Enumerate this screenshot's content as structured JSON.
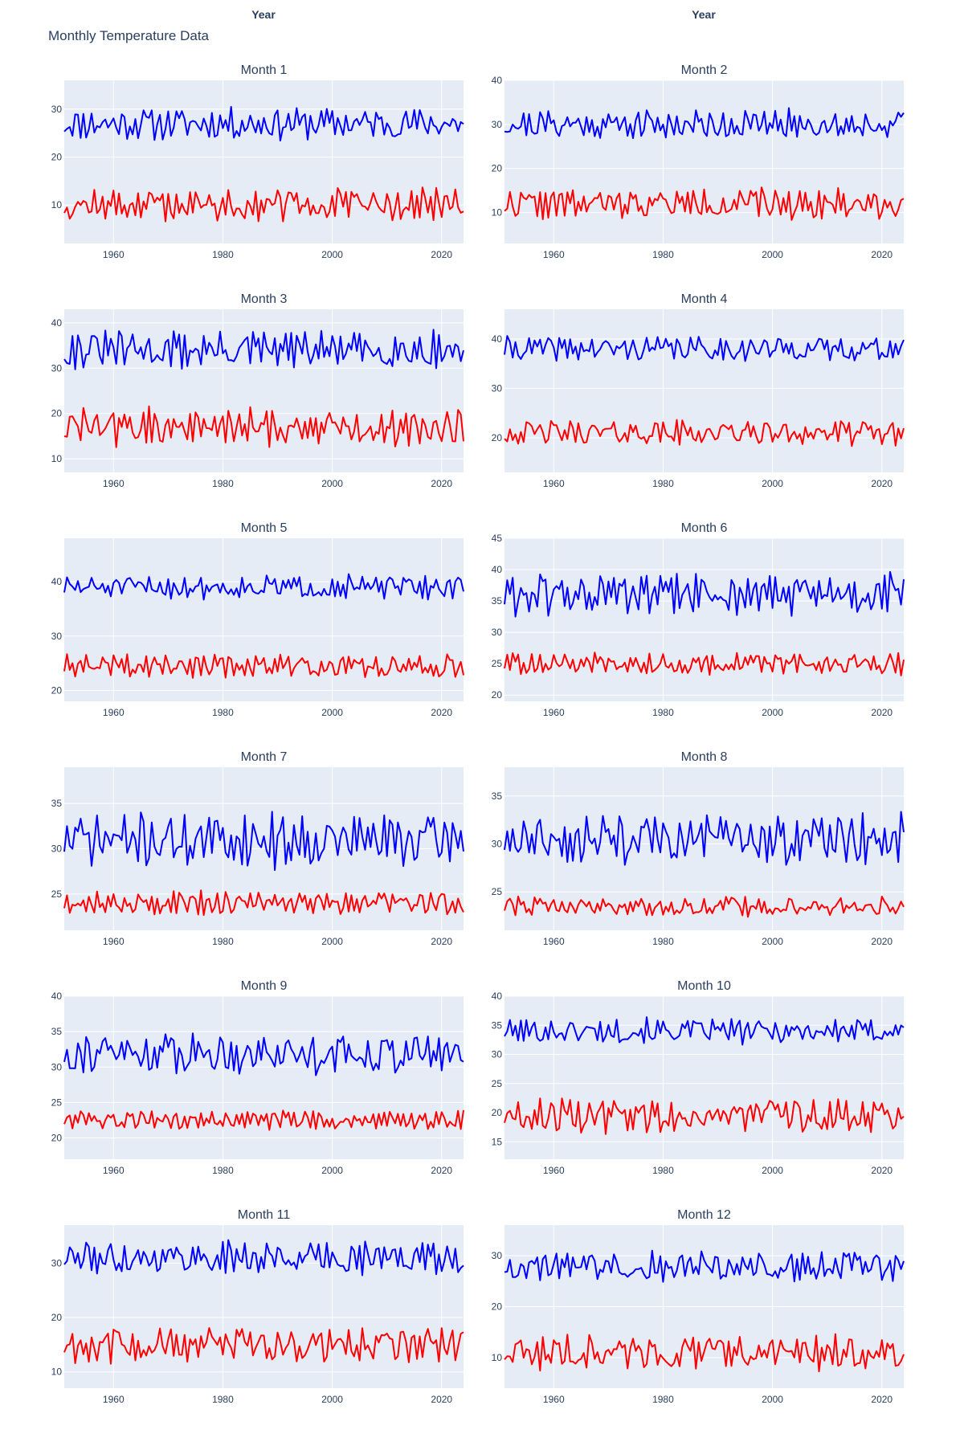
{
  "title": "Monthly Temperature Data",
  "xaxis_title": "Year",
  "colors": {
    "background": "#ffffff",
    "plot_bg": "#e5ecf6",
    "grid": "#ffffff",
    "text": "#2a3f5f",
    "series_high": "#0000ff",
    "series_low": "#ff0000"
  },
  "chart_data": [
    {
      "type": "line",
      "title": "Month 1",
      "x_range": [
        1951,
        2024
      ],
      "ylim": [
        2,
        36
      ],
      "yticks": [
        10,
        20,
        30
      ],
      "xticks": [
        1960,
        1980,
        2000,
        2020
      ],
      "grid": true,
      "series": [
        {
          "color": "#0000ff",
          "mean": 27,
          "amp": 4,
          "seed": 11
        },
        {
          "color": "#ff0000",
          "mean": 10,
          "amp": 4,
          "seed": 12
        }
      ]
    },
    {
      "type": "line",
      "title": "Month 2",
      "x_range": [
        1951,
        2024
      ],
      "ylim": [
        3,
        40
      ],
      "yticks": [
        10,
        20,
        30,
        40
      ],
      "xticks": [
        1960,
        1980,
        2000,
        2020
      ],
      "grid": true,
      "series": [
        {
          "color": "#0000ff",
          "mean": 30,
          "amp": 4,
          "seed": 21
        },
        {
          "color": "#ff0000",
          "mean": 12,
          "amp": 4,
          "seed": 22
        }
      ]
    },
    {
      "type": "line",
      "title": "Month 3",
      "x_range": [
        1951,
        2024
      ],
      "ylim": [
        7,
        43
      ],
      "yticks": [
        10,
        20,
        30,
        40
      ],
      "xticks": [
        1960,
        1980,
        2000,
        2020
      ],
      "grid": true,
      "series": [
        {
          "color": "#0000ff",
          "mean": 34,
          "amp": 5,
          "seed": 31
        },
        {
          "color": "#ff0000",
          "mean": 17,
          "amp": 5,
          "seed": 32
        }
      ]
    },
    {
      "type": "line",
      "title": "Month 4",
      "x_range": [
        1951,
        2024
      ],
      "ylim": [
        13,
        46
      ],
      "yticks": [
        20,
        30,
        40
      ],
      "xticks": [
        1960,
        1980,
        2000,
        2020
      ],
      "grid": true,
      "series": [
        {
          "color": "#0000ff",
          "mean": 38,
          "amp": 3,
          "seed": 41
        },
        {
          "color": "#ff0000",
          "mean": 21,
          "amp": 3,
          "seed": 42
        }
      ]
    },
    {
      "type": "line",
      "title": "Month 5",
      "x_range": [
        1951,
        2024
      ],
      "ylim": [
        18,
        48
      ],
      "yticks": [
        20,
        30,
        40
      ],
      "xticks": [
        1960,
        1980,
        2000,
        2020
      ],
      "grid": true,
      "series": [
        {
          "color": "#0000ff",
          "mean": 39,
          "amp": 2.5,
          "seed": 51
        },
        {
          "color": "#ff0000",
          "mean": 24.5,
          "amp": 2.5,
          "seed": 52
        }
      ]
    },
    {
      "type": "line",
      "title": "Month 6",
      "x_range": [
        1951,
        2024
      ],
      "ylim": [
        19,
        45
      ],
      "yticks": [
        20,
        25,
        30,
        35,
        40,
        45
      ],
      "xticks": [
        1960,
        1980,
        2000,
        2020
      ],
      "grid": true,
      "series": [
        {
          "color": "#0000ff",
          "mean": 36,
          "amp": 4,
          "seed": 61
        },
        {
          "color": "#ff0000",
          "mean": 25,
          "amp": 2,
          "seed": 62
        }
      ]
    },
    {
      "type": "line",
      "title": "Month 7",
      "x_range": [
        1951,
        2024
      ],
      "ylim": [
        21,
        39
      ],
      "yticks": [
        25,
        30,
        35
      ],
      "xticks": [
        1960,
        1980,
        2000,
        2020
      ],
      "grid": true,
      "series": [
        {
          "color": "#0000ff",
          "mean": 31,
          "amp": 3.5,
          "seed": 71
        },
        {
          "color": "#ff0000",
          "mean": 24,
          "amp": 1.5,
          "seed": 72
        }
      ]
    },
    {
      "type": "line",
      "title": "Month 8",
      "x_range": [
        1951,
        2024
      ],
      "ylim": [
        21,
        38
      ],
      "yticks": [
        25,
        30,
        35
      ],
      "xticks": [
        1960,
        1980,
        2000,
        2020
      ],
      "grid": true,
      "series": [
        {
          "color": "#0000ff",
          "mean": 30.5,
          "amp": 3,
          "seed": 81
        },
        {
          "color": "#ff0000",
          "mean": 23.5,
          "amp": 1.2,
          "seed": 82
        }
      ]
    },
    {
      "type": "line",
      "title": "Month 9",
      "x_range": [
        1951,
        2024
      ],
      "ylim": [
        17,
        40
      ],
      "yticks": [
        20,
        25,
        30,
        35,
        40
      ],
      "xticks": [
        1960,
        1980,
        2000,
        2020
      ],
      "grid": true,
      "series": [
        {
          "color": "#0000ff",
          "mean": 32,
          "amp": 3.5,
          "seed": 91
        },
        {
          "color": "#ff0000",
          "mean": 22.5,
          "amp": 1.5,
          "seed": 92
        }
      ]
    },
    {
      "type": "line",
      "title": "Month 10",
      "x_range": [
        1951,
        2024
      ],
      "ylim": [
        12,
        40
      ],
      "yticks": [
        15,
        20,
        25,
        30,
        35,
        40
      ],
      "xticks": [
        1960,
        1980,
        2000,
        2020
      ],
      "grid": true,
      "series": [
        {
          "color": "#0000ff",
          "mean": 34,
          "amp": 2.5,
          "seed": 101
        },
        {
          "color": "#ff0000",
          "mean": 19.5,
          "amp": 3.5,
          "seed": 102
        }
      ]
    },
    {
      "type": "line",
      "title": "Month 11",
      "x_range": [
        1951,
        2024
      ],
      "ylim": [
        7,
        37
      ],
      "yticks": [
        10,
        20,
        30
      ],
      "xticks": [
        1960,
        1980,
        2000,
        2020
      ],
      "grid": true,
      "series": [
        {
          "color": "#0000ff",
          "mean": 31,
          "amp": 3.5,
          "seed": 111
        },
        {
          "color": "#ff0000",
          "mean": 15,
          "amp": 4,
          "seed": 112
        }
      ]
    },
    {
      "type": "line",
      "title": "Month 12",
      "x_range": [
        1951,
        2024
      ],
      "ylim": [
        4,
        36
      ],
      "yticks": [
        10,
        20,
        30
      ],
      "xticks": [
        1960,
        1980,
        2000,
        2020
      ],
      "grid": true,
      "series": [
        {
          "color": "#0000ff",
          "mean": 28,
          "amp": 3.5,
          "seed": 121
        },
        {
          "color": "#ff0000",
          "mean": 11,
          "amp": 4,
          "seed": 122
        }
      ]
    }
  ]
}
